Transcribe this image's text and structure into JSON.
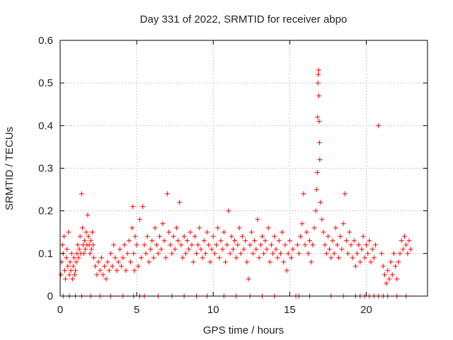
{
  "chart_data": {
    "type": "scatter",
    "title": "Day 331 of 2022, SRMTID for receiver abpo",
    "xlabel": "GPS time / hours",
    "ylabel": "SRMTID / TECUs",
    "xlim": [
      0,
      24
    ],
    "ylim": [
      0,
      0.6
    ],
    "xticks": [
      0,
      5,
      10,
      15,
      20
    ],
    "xtick_labels": [
      "0",
      "5",
      "10",
      "15",
      "20"
    ],
    "yticks": [
      0,
      0.1,
      0.2,
      0.3,
      0.4,
      0.5,
      0.6
    ],
    "ytick_labels": [
      "0",
      "0.1",
      "0.2",
      "0.3",
      "0.4",
      "0.5",
      "0.6"
    ],
    "grid": true,
    "marker": "+",
    "color": "#ff0000",
    "series": [
      {
        "name": "SRMTID",
        "points": [
          [
            0.05,
            0.05
          ],
          [
            0.1,
            0.08
          ],
          [
            0.15,
            0.12
          ],
          [
            0.2,
            0.1
          ],
          [
            0.25,
            0.14
          ],
          [
            0.3,
            0.06
          ],
          [
            0.35,
            0.04
          ],
          [
            0.4,
            0.09
          ],
          [
            0.45,
            0.11
          ],
          [
            0.5,
            0.07
          ],
          [
            0.55,
            0.15
          ],
          [
            0.6,
            0.05
          ],
          [
            0.65,
            0.08
          ],
          [
            0.7,
            0.06
          ],
          [
            0.75,
            0.1
          ],
          [
            0.8,
            0.04
          ],
          [
            0.85,
            0.07
          ],
          [
            0.9,
            0.09
          ],
          [
            0.95,
            0.05
          ],
          [
            1.0,
            0.06
          ],
          [
            1.05,
            0.08
          ],
          [
            1.1,
            0.1
          ],
          [
            1.15,
            0.12
          ],
          [
            1.2,
            0.09
          ],
          [
            1.25,
            0.11
          ],
          [
            1.3,
            0.14
          ],
          [
            1.35,
            0.1
          ],
          [
            1.4,
            0.24
          ],
          [
            1.45,
            0.16
          ],
          [
            1.5,
            0.12
          ],
          [
            1.55,
            0.1
          ],
          [
            1.6,
            0.13
          ],
          [
            1.65,
            0.11
          ],
          [
            1.7,
            0.15
          ],
          [
            1.75,
            0.12
          ],
          [
            1.8,
            0.19
          ],
          [
            1.85,
            0.14
          ],
          [
            1.9,
            0.12
          ],
          [
            1.95,
            0.1
          ],
          [
            2.0,
            0.13
          ],
          [
            2.05,
            0.11
          ],
          [
            2.1,
            0.15
          ],
          [
            2.15,
            0.12
          ],
          [
            2.2,
            0.09
          ],
          [
            2.3,
            0.07
          ],
          [
            2.4,
            0.05
          ],
          [
            2.5,
            0.08
          ],
          [
            2.6,
            0.06
          ],
          [
            2.7,
            0.09
          ],
          [
            2.8,
            0.05
          ],
          [
            2.9,
            0.07
          ],
          [
            3.0,
            0.04
          ],
          [
            3.1,
            0.08
          ],
          [
            3.2,
            0.06
          ],
          [
            3.3,
            0.1
          ],
          [
            3.4,
            0.07
          ],
          [
            3.5,
            0.12
          ],
          [
            3.6,
            0.09
          ],
          [
            3.7,
            0.06
          ],
          [
            3.8,
            0.08
          ],
          [
            3.9,
            0.11
          ],
          [
            4.0,
            0.07
          ],
          [
            4.1,
            0.09
          ],
          [
            4.2,
            0.12
          ],
          [
            4.3,
            0.06
          ],
          [
            4.4,
            0.1
          ],
          [
            4.5,
            0.13
          ],
          [
            4.6,
            0.08
          ],
          [
            4.7,
            0.16
          ],
          [
            4.75,
            0.21
          ],
          [
            4.8,
            0.1
          ],
          [
            4.85,
            0.06
          ],
          [
            4.9,
            0.14
          ],
          [
            5.0,
            0.12
          ],
          [
            5.1,
            0.07
          ],
          [
            5.2,
            0.18
          ],
          [
            5.3,
            0.09
          ],
          [
            5.4,
            0.21
          ],
          [
            5.5,
            0.12
          ],
          [
            5.6,
            0.1
          ],
          [
            5.7,
            0.14
          ],
          [
            5.8,
            0.08
          ],
          [
            5.9,
            0.11
          ],
          [
            6.0,
            0.13
          ],
          [
            6.1,
            0.09
          ],
          [
            6.2,
            0.16
          ],
          [
            6.3,
            0.12
          ],
          [
            6.4,
            0.1
          ],
          [
            6.5,
            0.14
          ],
          [
            6.6,
            0.11
          ],
          [
            6.7,
            0.17
          ],
          [
            6.8,
            0.13
          ],
          [
            6.9,
            0.09
          ],
          [
            7.0,
            0.24
          ],
          [
            7.1,
            0.15
          ],
          [
            7.2,
            0.12
          ],
          [
            7.3,
            0.1
          ],
          [
            7.4,
            0.14
          ],
          [
            7.5,
            0.11
          ],
          [
            7.6,
            0.16
          ],
          [
            7.7,
            0.13
          ],
          [
            7.8,
            0.22
          ],
          [
            7.9,
            0.12
          ],
          [
            8.0,
            0.09
          ],
          [
            8.1,
            0.14
          ],
          [
            8.2,
            0.1
          ],
          [
            8.3,
            0.13
          ],
          [
            8.4,
            0.11
          ],
          [
            8.5,
            0.15
          ],
          [
            8.6,
            0.12
          ],
          [
            8.7,
            0.08
          ],
          [
            8.8,
            0.14
          ],
          [
            8.9,
            0.1
          ],
          [
            9.0,
            0.12
          ],
          [
            9.1,
            0.16
          ],
          [
            9.2,
            0.11
          ],
          [
            9.3,
            0.09
          ],
          [
            9.4,
            0.13
          ],
          [
            9.5,
            0.1
          ],
          [
            9.6,
            0.15
          ],
          [
            9.7,
            0.12
          ],
          [
            9.8,
            0.08
          ],
          [
            9.9,
            0.11
          ],
          [
            10.0,
            0.14
          ],
          [
            10.1,
            0.1
          ],
          [
            10.2,
            0.12
          ],
          [
            10.3,
            0.16
          ],
          [
            10.4,
            0.09
          ],
          [
            10.5,
            0.13
          ],
          [
            10.6,
            0.11
          ],
          [
            10.7,
            0.15
          ],
          [
            10.8,
            0.08
          ],
          [
            10.9,
            0.12
          ],
          [
            11.0,
            0.2
          ],
          [
            11.1,
            0.1
          ],
          [
            11.2,
            0.14
          ],
          [
            11.3,
            0.11
          ],
          [
            11.4,
            0.13
          ],
          [
            11.5,
            0.09
          ],
          [
            11.6,
            0.12
          ],
          [
            11.7,
            0.16
          ],
          [
            11.8,
            0.1
          ],
          [
            11.9,
            0.14
          ],
          [
            12.0,
            0.11
          ],
          [
            12.1,
            0.13
          ],
          [
            12.2,
            0.08
          ],
          [
            12.3,
            0.04
          ],
          [
            12.4,
            0.12
          ],
          [
            12.5,
            0.15
          ],
          [
            12.6,
            0.1
          ],
          [
            12.7,
            0.13
          ],
          [
            12.8,
            0.11
          ],
          [
            12.9,
            0.18
          ],
          [
            13.0,
            0.09
          ],
          [
            13.1,
            0.12
          ],
          [
            13.2,
            0.14
          ],
          [
            13.3,
            0.1
          ],
          [
            13.4,
            0.13
          ],
          [
            13.5,
            0.11
          ],
          [
            13.6,
            0.16
          ],
          [
            13.7,
            0.08
          ],
          [
            13.8,
            0.12
          ],
          [
            13.9,
            0.1
          ],
          [
            14.0,
            0.14
          ],
          [
            14.1,
            0.11
          ],
          [
            14.2,
            0.09
          ],
          [
            14.3,
            0.13
          ],
          [
            14.4,
            0.1
          ],
          [
            14.5,
            0.15
          ],
          [
            14.6,
            0.08
          ],
          [
            14.7,
            0.12
          ],
          [
            14.8,
            0.06
          ],
          [
            14.9,
            0.1
          ],
          [
            15.0,
            0.13
          ],
          [
            15.1,
            0.09
          ],
          [
            15.2,
            0.11
          ],
          [
            15.5,
            0.12
          ],
          [
            15.6,
            0.1
          ],
          [
            15.7,
            0.14
          ],
          [
            15.8,
            0.17
          ],
          [
            15.9,
            0.24
          ],
          [
            16.0,
            0.12
          ],
          [
            16.1,
            0.15
          ],
          [
            16.2,
            0.1
          ],
          [
            16.3,
            0.13
          ],
          [
            16.4,
            0.08
          ],
          [
            16.5,
            0.12
          ],
          [
            16.6,
            0.16
          ],
          [
            16.7,
            0.2
          ],
          [
            16.75,
            0.25
          ],
          [
            16.8,
            0.29
          ],
          [
            16.82,
            0.42
          ],
          [
            16.84,
            0.5
          ],
          [
            16.86,
            0.52
          ],
          [
            16.88,
            0.53
          ],
          [
            16.9,
            0.47
          ],
          [
            16.92,
            0.41
          ],
          [
            16.94,
            0.36
          ],
          [
            16.96,
            0.32
          ],
          [
            17.0,
            0.22
          ],
          [
            17.1,
            0.18
          ],
          [
            17.2,
            0.15
          ],
          [
            17.3,
            0.12
          ],
          [
            17.4,
            0.1
          ],
          [
            17.5,
            0.14
          ],
          [
            17.6,
            0.11
          ],
          [
            17.7,
            0.09
          ],
          [
            17.8,
            0.13
          ],
          [
            17.9,
            0.1
          ],
          [
            18.0,
            0.16
          ],
          [
            18.1,
            0.12
          ],
          [
            18.2,
            0.09
          ],
          [
            18.3,
            0.14
          ],
          [
            18.4,
            0.11
          ],
          [
            18.5,
            0.17
          ],
          [
            18.6,
            0.24
          ],
          [
            18.7,
            0.13
          ],
          [
            18.8,
            0.1
          ],
          [
            18.9,
            0.15
          ],
          [
            19.0,
            0.12
          ],
          [
            19.1,
            0.09
          ],
          [
            19.2,
            0.13
          ],
          [
            19.3,
            0.07
          ],
          [
            19.4,
            0.1
          ],
          [
            19.5,
            0.12
          ],
          [
            19.6,
            0.08
          ],
          [
            19.7,
            0.11
          ],
          [
            19.8,
            0.14
          ],
          [
            19.9,
            0.09
          ],
          [
            20.0,
            0.12
          ],
          [
            20.1,
            0.1
          ],
          [
            20.2,
            0.13
          ],
          [
            20.3,
            0.08
          ],
          [
            20.4,
            0.11
          ],
          [
            20.5,
            0.09
          ],
          [
            20.6,
            0.12
          ],
          [
            20.8,
            0.4
          ],
          [
            21.0,
            0.1
          ],
          [
            21.1,
            0.07
          ],
          [
            21.2,
            0.05
          ],
          [
            21.3,
            0.03
          ],
          [
            21.4,
            0.06
          ],
          [
            21.5,
            0.04
          ],
          [
            21.6,
            0.08
          ],
          [
            21.7,
            0.05
          ],
          [
            21.8,
            0.1
          ],
          [
            21.9,
            0.07
          ],
          [
            22.0,
            0.04
          ],
          [
            22.1,
            0.08
          ],
          [
            22.2,
            0.1
          ],
          [
            22.3,
            0.13
          ],
          [
            22.4,
            0.11
          ],
          [
            22.5,
            0.14
          ],
          [
            22.6,
            0.12
          ],
          [
            22.7,
            0.1
          ],
          [
            22.8,
            0.13
          ],
          [
            22.9,
            0.11
          ],
          [
            0.2,
            0
          ],
          [
            0.6,
            0
          ],
          [
            1.0,
            0
          ],
          [
            1.4,
            0
          ],
          [
            2.0,
            0
          ],
          [
            2.6,
            0
          ],
          [
            3.3,
            0
          ],
          [
            4.1,
            0
          ],
          [
            4.8,
            0
          ],
          [
            5.2,
            0
          ],
          [
            5.5,
            0
          ],
          [
            6.4,
            0
          ],
          [
            7.3,
            0
          ],
          [
            8.1,
            0
          ],
          [
            8.9,
            0
          ],
          [
            9.6,
            0
          ],
          [
            10.7,
            0
          ],
          [
            11.5,
            0
          ],
          [
            12.4,
            0
          ],
          [
            13.2,
            0
          ],
          [
            14.0,
            0
          ],
          [
            15.4,
            0
          ],
          [
            15.6,
            0
          ],
          [
            16.3,
            0
          ],
          [
            17.7,
            0
          ],
          [
            18.5,
            0
          ],
          [
            19.3,
            0
          ],
          [
            19.6,
            0
          ],
          [
            19.9,
            0
          ],
          [
            20.2,
            0
          ],
          [
            20.5,
            0
          ],
          [
            20.8,
            0
          ],
          [
            21.1,
            0
          ],
          [
            21.4,
            0
          ],
          [
            22.0,
            0
          ],
          [
            22.6,
            0
          ]
        ]
      }
    ]
  }
}
